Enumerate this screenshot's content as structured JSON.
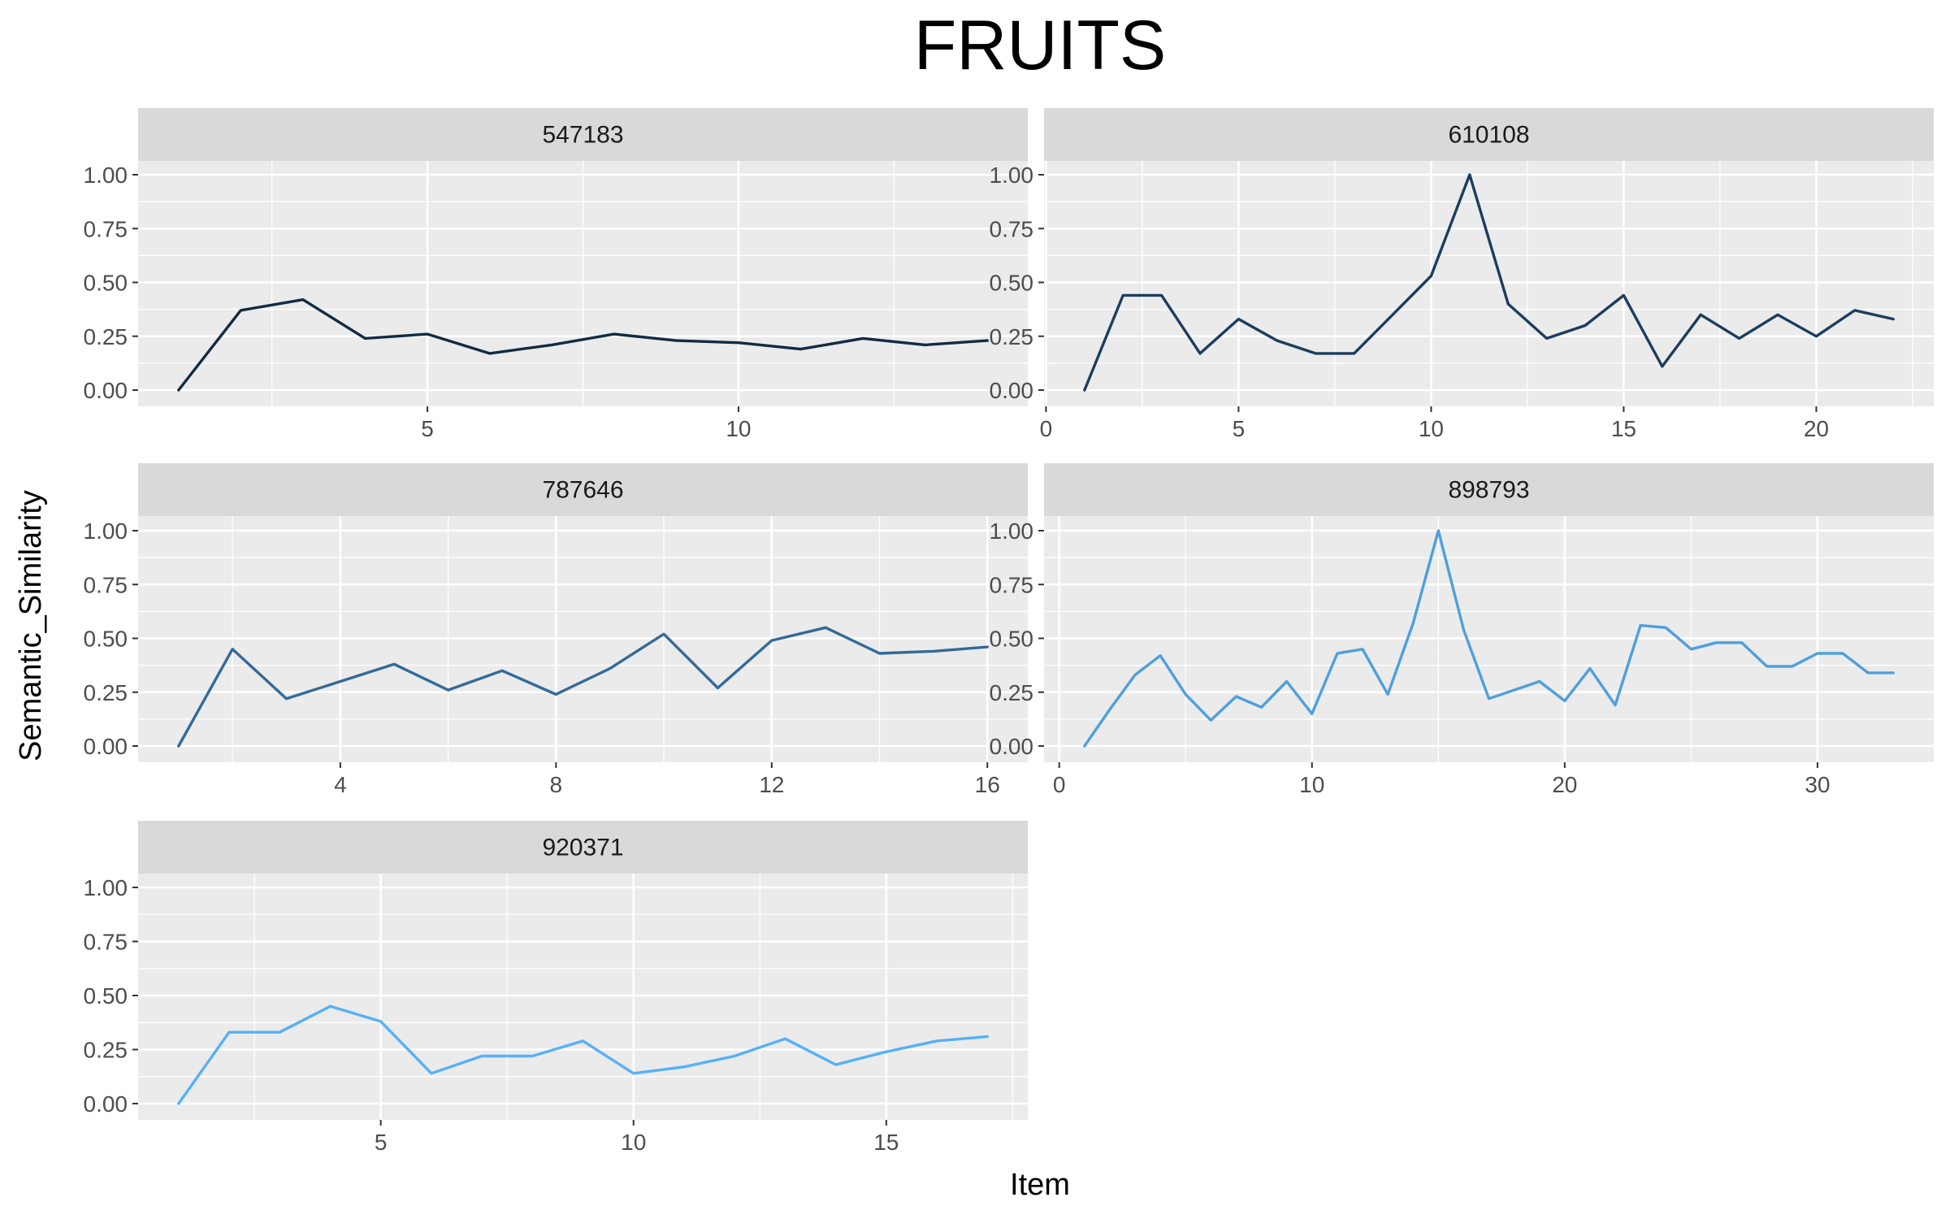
{
  "chart_data": {
    "type": "line",
    "title": "FRUITS",
    "xlabel": "Item",
    "ylabel": "Semantic_Similarity",
    "ylim": [
      0,
      1
    ],
    "y_ticks": [
      "0.00",
      "0.25",
      "0.50",
      "0.75",
      "1.00"
    ],
    "grid": true,
    "legend": "none",
    "facets": [
      {
        "label": "547183",
        "color": "#132b43",
        "xlim": [
          0.35,
          14.65
        ],
        "x_ticks": [
          5,
          10
        ],
        "x": [
          1,
          2,
          3,
          4,
          5,
          6,
          7,
          8,
          9,
          10,
          11,
          12,
          13,
          14
        ],
        "y": [
          0.0,
          0.37,
          0.42,
          0.24,
          0.26,
          0.17,
          0.21,
          0.26,
          0.23,
          0.22,
          0.19,
          0.24,
          0.21,
          0.23
        ]
      },
      {
        "label": "610108",
        "color": "#1c3d5e",
        "xlim": [
          -0.05,
          23.05
        ],
        "x_ticks": [
          0,
          5,
          10,
          15,
          20
        ],
        "x": [
          1,
          2,
          3,
          4,
          5,
          6,
          7,
          8,
          9,
          10,
          11,
          12,
          13,
          14,
          15,
          16,
          17,
          18,
          19,
          20,
          21,
          22
        ],
        "y": [
          0.0,
          0.44,
          0.44,
          0.17,
          0.33,
          0.23,
          0.17,
          0.17,
          0.35,
          0.53,
          1.0,
          0.4,
          0.24,
          0.3,
          0.44,
          0.11,
          0.35,
          0.24,
          0.35,
          0.25,
          0.37,
          0.33
        ]
      },
      {
        "label": "787646",
        "color": "#336a98",
        "xlim": [
          0.25,
          16.75
        ],
        "x_ticks": [
          4,
          8,
          12,
          16
        ],
        "x": [
          1,
          2,
          3,
          4,
          5,
          6,
          7,
          8,
          9,
          10,
          11,
          12,
          13,
          14,
          15,
          16
        ],
        "y": [
          0.0,
          0.45,
          0.22,
          0.3,
          0.38,
          0.26,
          0.35,
          0.24,
          0.36,
          0.52,
          0.27,
          0.49,
          0.55,
          0.43,
          0.44,
          0.46
        ]
      },
      {
        "label": "898793",
        "color": "#4f9fdc",
        "xlim": [
          -0.6,
          34.6
        ],
        "x_ticks": [
          0,
          10,
          20,
          30
        ],
        "x": [
          1,
          2,
          3,
          4,
          5,
          6,
          7,
          8,
          9,
          10,
          11,
          12,
          13,
          14,
          15,
          16,
          17,
          18,
          19,
          20,
          21,
          22,
          23,
          24,
          25,
          26,
          27,
          28,
          29,
          30,
          31,
          32,
          33
        ],
        "y": [
          0.0,
          0.17,
          0.33,
          0.42,
          0.24,
          0.12,
          0.23,
          0.18,
          0.3,
          0.15,
          0.43,
          0.45,
          0.24,
          0.57,
          1.0,
          0.54,
          0.22,
          0.26,
          0.3,
          0.21,
          0.36,
          0.19,
          0.56,
          0.55,
          0.45,
          0.48,
          0.48,
          0.37,
          0.37,
          0.43,
          0.43,
          0.34,
          0.34
        ]
      },
      {
        "label": "920371",
        "color": "#56b1f7",
        "xlim": [
          0.2,
          17.8
        ],
        "x_ticks": [
          5,
          10,
          15
        ],
        "x": [
          1,
          2,
          3,
          4,
          5,
          6,
          7,
          8,
          9,
          10,
          11,
          12,
          13,
          14,
          15,
          16,
          17
        ],
        "y": [
          0.0,
          0.33,
          0.33,
          0.45,
          0.38,
          0.14,
          0.22,
          0.22,
          0.29,
          0.14,
          0.17,
          0.22,
          0.3,
          0.18,
          0.24,
          0.29,
          0.31
        ]
      }
    ]
  }
}
